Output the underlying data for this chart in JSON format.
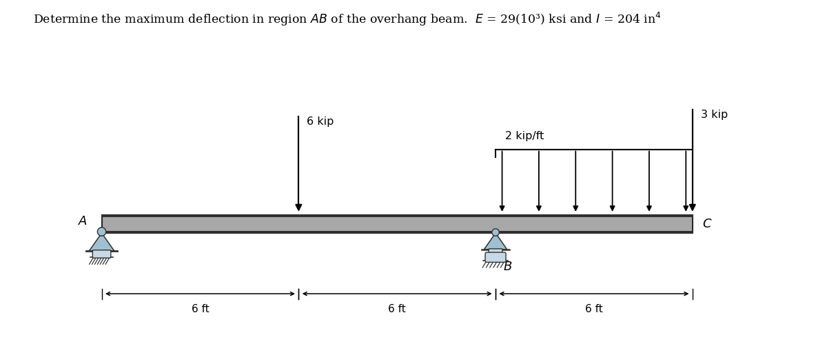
{
  "beam_x_start": 0.0,
  "beam_x_end": 18.0,
  "beam_y": 0.0,
  "beam_height": 0.55,
  "point_load_x": 6.0,
  "point_load_label": "6 kip",
  "dist_load_x_start": 12.0,
  "dist_load_x_end": 18.0,
  "dist_load_label": "2 kip/ft",
  "dist_load_n_arrows": 6,
  "point_load2_x": 18.0,
  "point_load2_label": "3 kip",
  "support_A_x": 0.0,
  "support_B_x": 12.0,
  "label_A": "A",
  "label_B": "B",
  "label_C": "C",
  "dim_labels": [
    "6 ft",
    "6 ft",
    "6 ft"
  ],
  "beam_fill": "#a8a8a8",
  "beam_edge_dark": "#282828",
  "support_fill": "#a0bfd0",
  "support_edge": "#303030",
  "xlim": [
    -2.5,
    21.5
  ],
  "ylim": [
    -3.5,
    5.8
  ]
}
